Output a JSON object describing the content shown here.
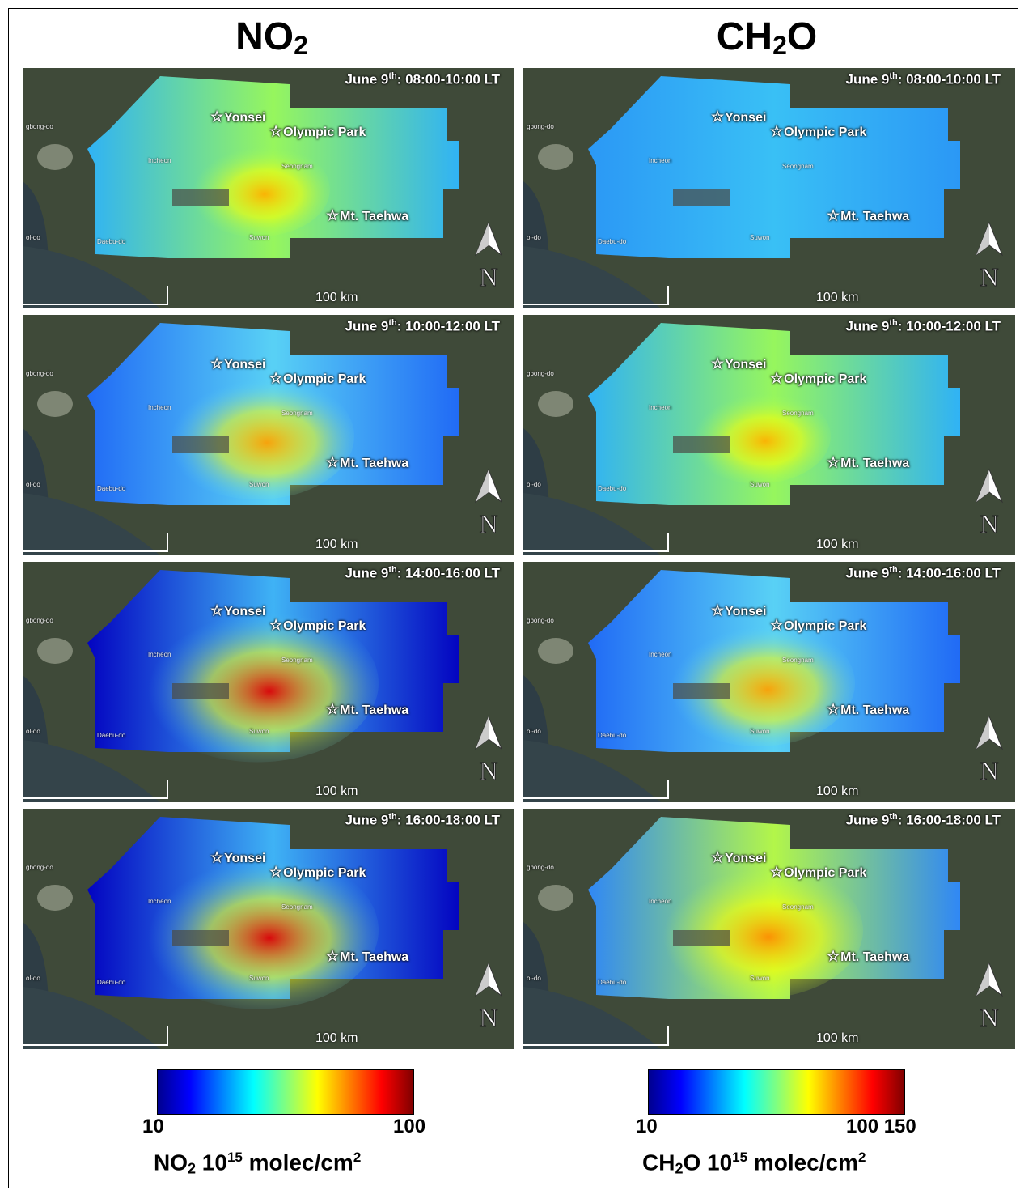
{
  "columns": [
    {
      "id": "no2",
      "title_main": "NO",
      "title_sub": "2"
    },
    {
      "id": "ch2o",
      "title_main": "CH",
      "title_sub": "2",
      "title_tail": "O"
    }
  ],
  "panels": [
    {
      "col": "no2",
      "date": "June 9",
      "sup": "th",
      "time": ": 08:00-10:00 LT",
      "level": "low"
    },
    {
      "col": "ch2o",
      "date": "June 9",
      "sup": "th",
      "time": ": 08:00-10:00 LT",
      "level": "vlow"
    },
    {
      "col": "no2",
      "date": "June 9",
      "sup": "th",
      "time": ": 10:00-12:00 LT",
      "level": "mid"
    },
    {
      "col": "ch2o",
      "date": "June 9",
      "sup": "th",
      "time": ": 10:00-12:00 LT",
      "level": "low"
    },
    {
      "col": "no2",
      "date": "June 9",
      "sup": "th",
      "time": ": 14:00-16:00 LT",
      "level": "high"
    },
    {
      "col": "ch2o",
      "date": "June 9",
      "sup": "th",
      "time": ": 14:00-16:00 LT",
      "level": "mid"
    },
    {
      "col": "no2",
      "date": "June 9",
      "sup": "th",
      "time": ": 16:00-18:00 LT",
      "level": "high"
    },
    {
      "col": "ch2o",
      "date": "June 9",
      "sup": "th",
      "time": ": 16:00-18:00 LT",
      "level": "midhigh"
    }
  ],
  "sites": [
    "Yonsei",
    "Olympic Park",
    "Mt. Taehwa"
  ],
  "cities": [
    "Incheon",
    "Seongnam",
    "Suwon",
    "Daebu-do",
    "gbong-do",
    "ol-do"
  ],
  "scale_label": "100 km",
  "north_label": "N",
  "colorbars": [
    {
      "id": "no2",
      "ticks": [
        "10",
        "100"
      ],
      "label_a": "NO",
      "label_sub": "2",
      "label_b": " 10",
      "label_sup": "15",
      "label_c": " molec/cm",
      "label_sup2": "2"
    },
    {
      "id": "ch2o",
      "ticks": [
        "10",
        "100 150"
      ],
      "label_a": "CH",
      "label_sub": "2",
      "label_b": "O 10",
      "label_sup": "15",
      "label_c": " molec/cm",
      "label_sup2": "2"
    }
  ],
  "colormap": [
    "#00008f",
    "#0000ff",
    "#0080ff",
    "#00ffff",
    "#80ff80",
    "#ffff00",
    "#ff8000",
    "#ff0000",
    "#800000"
  ]
}
